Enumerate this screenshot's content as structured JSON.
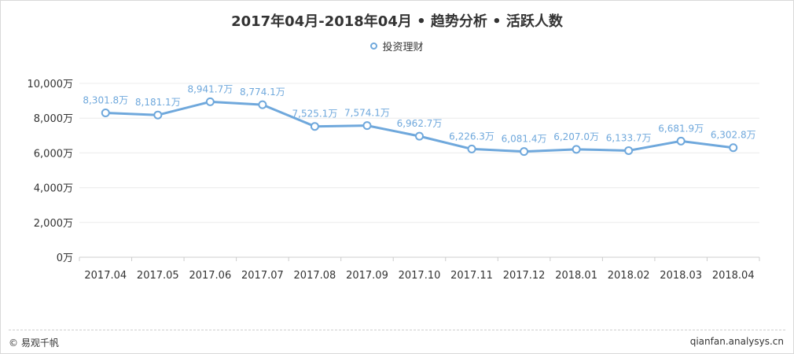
{
  "title": "2017年04月-2018年04月 • 趋势分析 • 活跃人数",
  "legend": {
    "label": "投资理财",
    "color": "#6fa8dc"
  },
  "footer": {
    "left": "© 易观千帆",
    "right": "qianfan.analysys.cn"
  },
  "chart_data": {
    "type": "line",
    "title": "2017年04月-2018年04月 • 趋势分析 • 活跃人数",
    "categories": [
      "2017.04",
      "2017.05",
      "2017.06",
      "2017.07",
      "2017.08",
      "2017.09",
      "2017.10",
      "2017.11",
      "2017.12",
      "2018.01",
      "2018.02",
      "2018.03",
      "2018.04"
    ],
    "series": [
      {
        "name": "投资理财",
        "values": [
          8301.8,
          8181.1,
          8941.7,
          8774.1,
          7525.1,
          7574.1,
          6962.7,
          6226.3,
          6081.4,
          6207.0,
          6133.7,
          6681.9,
          6302.8
        ],
        "labels": [
          "8,301.8万",
          "8,181.1万",
          "8,941.7万",
          "8,774.1万",
          "7,525.1万",
          "7,574.1万",
          "6,962.7万",
          "6,226.3万",
          "6,081.4万",
          "6,207.0万",
          "6,133.7万",
          "6,681.9万",
          "6,302.8万"
        ]
      }
    ],
    "ylim": [
      0,
      10000
    ],
    "yticks": [
      0,
      2000,
      4000,
      6000,
      8000,
      10000
    ],
    "ytick_labels": [
      "0万",
      "2,000万",
      "4,000万",
      "6,000万",
      "8,000万",
      "10,000万"
    ],
    "xlabel": "",
    "ylabel": "",
    "grid": true,
    "legend_position": "top-center",
    "line_color": "#6fa8dc",
    "label_color": "#6fa8dc"
  }
}
